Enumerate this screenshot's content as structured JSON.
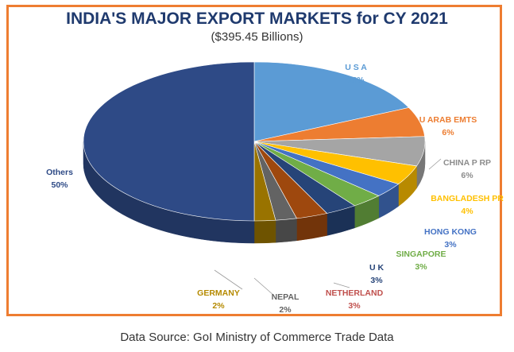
{
  "chart_data": {
    "type": "pie",
    "title": "INDIA'S MAJOR EXPORT MARKETS for CY 2021",
    "subtitle": "($395.45 Billions)",
    "source": "Data Source: GoI Ministry of Commerce Trade Data",
    "slices": [
      {
        "name": "U S A",
        "value_label": "18%",
        "value": 18,
        "color": "#5b9bd5"
      },
      {
        "name": "U ARAB EMTS",
        "value_label": "6%",
        "value": 6,
        "color": "#ed7d31"
      },
      {
        "name": "CHINA P RP",
        "value_label": "6%",
        "value": 6,
        "color": "#a5a5a5"
      },
      {
        "name": "BANGLADESH PR",
        "value_label": "4%",
        "value": 4,
        "color": "#ffc000"
      },
      {
        "name": "HONG KONG",
        "value_label": "3%",
        "value": 3,
        "color": "#4472c4"
      },
      {
        "name": "SINGAPORE",
        "value_label": "3%",
        "value": 3,
        "color": "#70ad47"
      },
      {
        "name": "U K",
        "value_label": "3%",
        "value": 3,
        "color": "#264478"
      },
      {
        "name": "NETHERLAND",
        "value_label": "3%",
        "value": 3,
        "color": "#9e480e"
      },
      {
        "name": "NEPAL",
        "value_label": "2%",
        "value": 2,
        "color": "#636363"
      },
      {
        "name": "GERMANY",
        "value_label": "2%",
        "value": 2,
        "color": "#997300"
      },
      {
        "name": "Others",
        "value_label": "50%",
        "value": 50,
        "color": "#2e4a86"
      }
    ]
  },
  "colors": {
    "frame": "#ee7d31",
    "title": "#1f3a6e"
  }
}
